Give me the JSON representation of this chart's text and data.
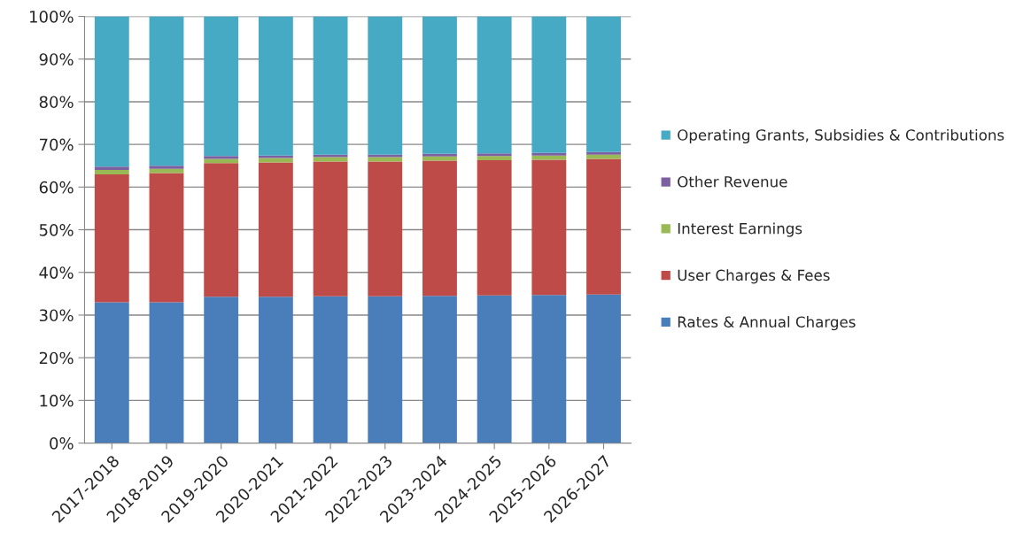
{
  "chart_data": {
    "type": "bar",
    "stacked": true,
    "categories": [
      "2017-2018",
      "2018-2019",
      "2019-2020",
      "2020-2021",
      "2021-2022",
      "2022-2023",
      "2023-2024",
      "2024-2025",
      "2025-2026",
      "2026-2027"
    ],
    "series": [
      {
        "name": "Rates & Annual Charges",
        "color": "#4a7ebb",
        "values": [
          33,
          33,
          34.3,
          34.3,
          34.4,
          34.4,
          34.5,
          34.6,
          34.7,
          34.8
        ]
      },
      {
        "name": "User Charges & Fees",
        "color": "#be4b48",
        "values": [
          30,
          30.3,
          31.3,
          31.5,
          31.6,
          31.6,
          31.7,
          31.7,
          31.7,
          31.8
        ]
      },
      {
        "name": "Interest Earnings",
        "color": "#98b954",
        "values": [
          1,
          1,
          1,
          1,
          1,
          1,
          1,
          1,
          1,
          1
        ]
      },
      {
        "name": "Other Revenue",
        "color": "#7d60a0",
        "values": [
          0.8,
          0.7,
          0.7,
          0.6,
          0.6,
          0.6,
          0.6,
          0.6,
          0.6,
          0.6
        ]
      },
      {
        "name": "Operating Grants, Subsidies & Contributions",
        "color": "#46aac5",
        "values": [
          35.2,
          35,
          32.7,
          32.6,
          32.4,
          32.4,
          32.2,
          32.1,
          32,
          31.8
        ]
      }
    ],
    "ylim": [
      0,
      100
    ],
    "yticks": [
      {
        "value": 0,
        "label": "0%"
      },
      {
        "value": 10,
        "label": "10%"
      },
      {
        "value": 20,
        "label": "20%"
      },
      {
        "value": 30,
        "label": "30%"
      },
      {
        "value": 40,
        "label": "40%"
      },
      {
        "value": 50,
        "label": "50%"
      },
      {
        "value": 60,
        "label": "60%"
      },
      {
        "value": 70,
        "label": "70%"
      },
      {
        "value": 80,
        "label": "80%"
      },
      {
        "value": 90,
        "label": "90%"
      },
      {
        "value": 100,
        "label": "100%"
      }
    ],
    "grid": "y",
    "legend": "right"
  }
}
